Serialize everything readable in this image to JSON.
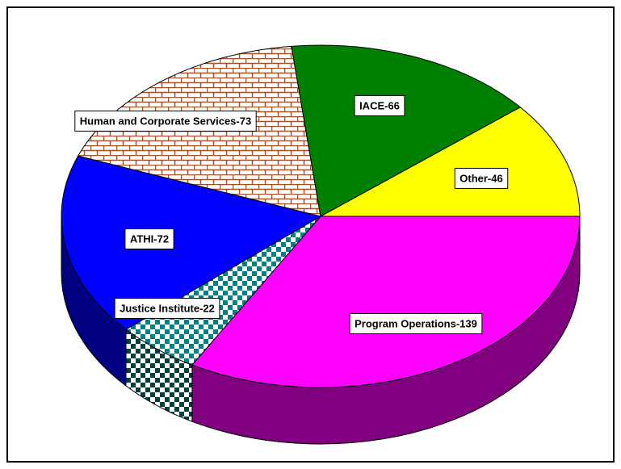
{
  "chart_data": {
    "type": "pie",
    "values": [
      139,
      22,
      72,
      73,
      66,
      46
    ],
    "value_labels": [
      "Program Operations-139",
      "Justice Institute-22",
      "ATHI-72",
      "Human and Corporate Services-73",
      "IACE-66",
      "Other-46"
    ],
    "colors": [
      "#ff00ff",
      "#008080",
      "#0000ff",
      "#a0522d",
      "#008000",
      "#ffff00"
    ],
    "patterns": [
      "solid",
      "checker",
      "solid",
      "brick",
      "solid",
      "solid"
    ]
  }
}
